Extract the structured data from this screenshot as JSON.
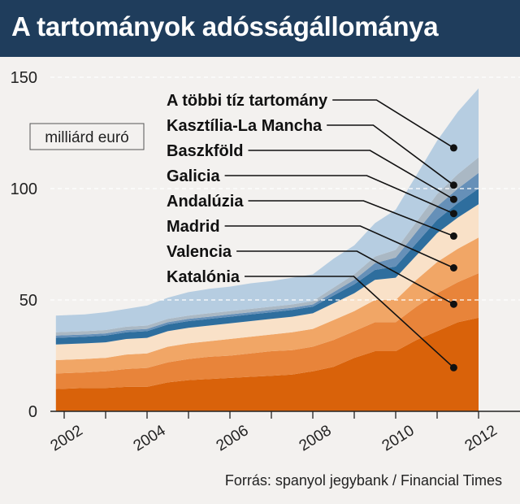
{
  "header": {
    "title": "A tartományok adósságállománya"
  },
  "footer": {
    "source": "Forrás: spanyol jegybank / Financial Times"
  },
  "chart_data": {
    "type": "area",
    "stacked": true,
    "title": "A tartományok adósságállománya",
    "unit_label": "milliárd euró",
    "ylim": [
      0,
      150
    ],
    "yticks": [
      0,
      50,
      100,
      150
    ],
    "xlim": [
      2001.8,
      2012.3
    ],
    "xticks": [
      2002,
      2004,
      2006,
      2008,
      2010,
      2012
    ],
    "x": [
      2001.8,
      2002.5,
      2003.0,
      2003.5,
      2004.0,
      2004.5,
      2005.0,
      2005.5,
      2006.0,
      2006.5,
      2007.0,
      2007.5,
      2008.0,
      2008.5,
      2009.0,
      2009.5,
      2010.0,
      2010.5,
      2011.0,
      2011.5,
      2012.0
    ],
    "series": [
      {
        "name": "Katalónia",
        "color": "#d9620a",
        "values": [
          10,
          10.5,
          10.5,
          11,
          11,
          13,
          14,
          14.5,
          15,
          15.5,
          16,
          16.5,
          18,
          20,
          24,
          27,
          27,
          32,
          36,
          40,
          42
        ]
      },
      {
        "name": "Valencia",
        "color": "#e8843a",
        "values": [
          7,
          7,
          7.5,
          8,
          8.5,
          9,
          9.5,
          10,
          10,
          10.5,
          11,
          11,
          11,
          12,
          12,
          13,
          13,
          15,
          17,
          18,
          20
        ]
      },
      {
        "name": "Madrid",
        "color": "#f1a666",
        "values": [
          6,
          6,
          6,
          6.5,
          6.5,
          7,
          7,
          7,
          7.5,
          7.5,
          7.5,
          8,
          8,
          9,
          9,
          10,
          10,
          12,
          14,
          15,
          16
        ]
      },
      {
        "name": "Andalúzia",
        "color": "#f9e1c8",
        "values": [
          7,
          7,
          7,
          7,
          7,
          7,
          7,
          7,
          7,
          7,
          7,
          7,
          7,
          7.5,
          8,
          9,
          10,
          11,
          13,
          14,
          15
        ]
      },
      {
        "name": "Galicia",
        "color": "#2e6e9e",
        "values": [
          3,
          3,
          3,
          3,
          3,
          3,
          3,
          3,
          3,
          3,
          3,
          3,
          3,
          3.5,
          4,
          4.5,
          5,
          5.5,
          6,
          6.5,
          7
        ]
      },
      {
        "name": "Baszkföld",
        "color": "#6690b8",
        "values": [
          1,
          1,
          1,
          1,
          1,
          1,
          1,
          1,
          1,
          1,
          1,
          1,
          1,
          1.5,
          2,
          3,
          4,
          5,
          6,
          6.5,
          7
        ]
      },
      {
        "name": "Kasztília-La Mancha",
        "color": "#aab8c4",
        "values": [
          1.5,
          1.5,
          1.5,
          1.5,
          1.5,
          1.5,
          1.5,
          1.5,
          1.5,
          1.5,
          1.5,
          1.5,
          1.5,
          2,
          2.5,
          3,
          3.5,
          4.5,
          5.5,
          6.5,
          7
        ]
      },
      {
        "name": "A többi tíz tartomány",
        "color": "#b6cde1",
        "values": [
          7.5,
          7.5,
          8,
          8,
          9,
          9.5,
          10.5,
          11,
          11,
          11.5,
          11.5,
          12,
          12,
          13,
          13,
          15,
          18,
          21,
          24,
          28,
          31
        ]
      }
    ],
    "legend_placement": "labels with leader lines, top-centre, listed in reverse stacking order",
    "grid": "dashed white horizontal lines at 50, 100, 150"
  }
}
